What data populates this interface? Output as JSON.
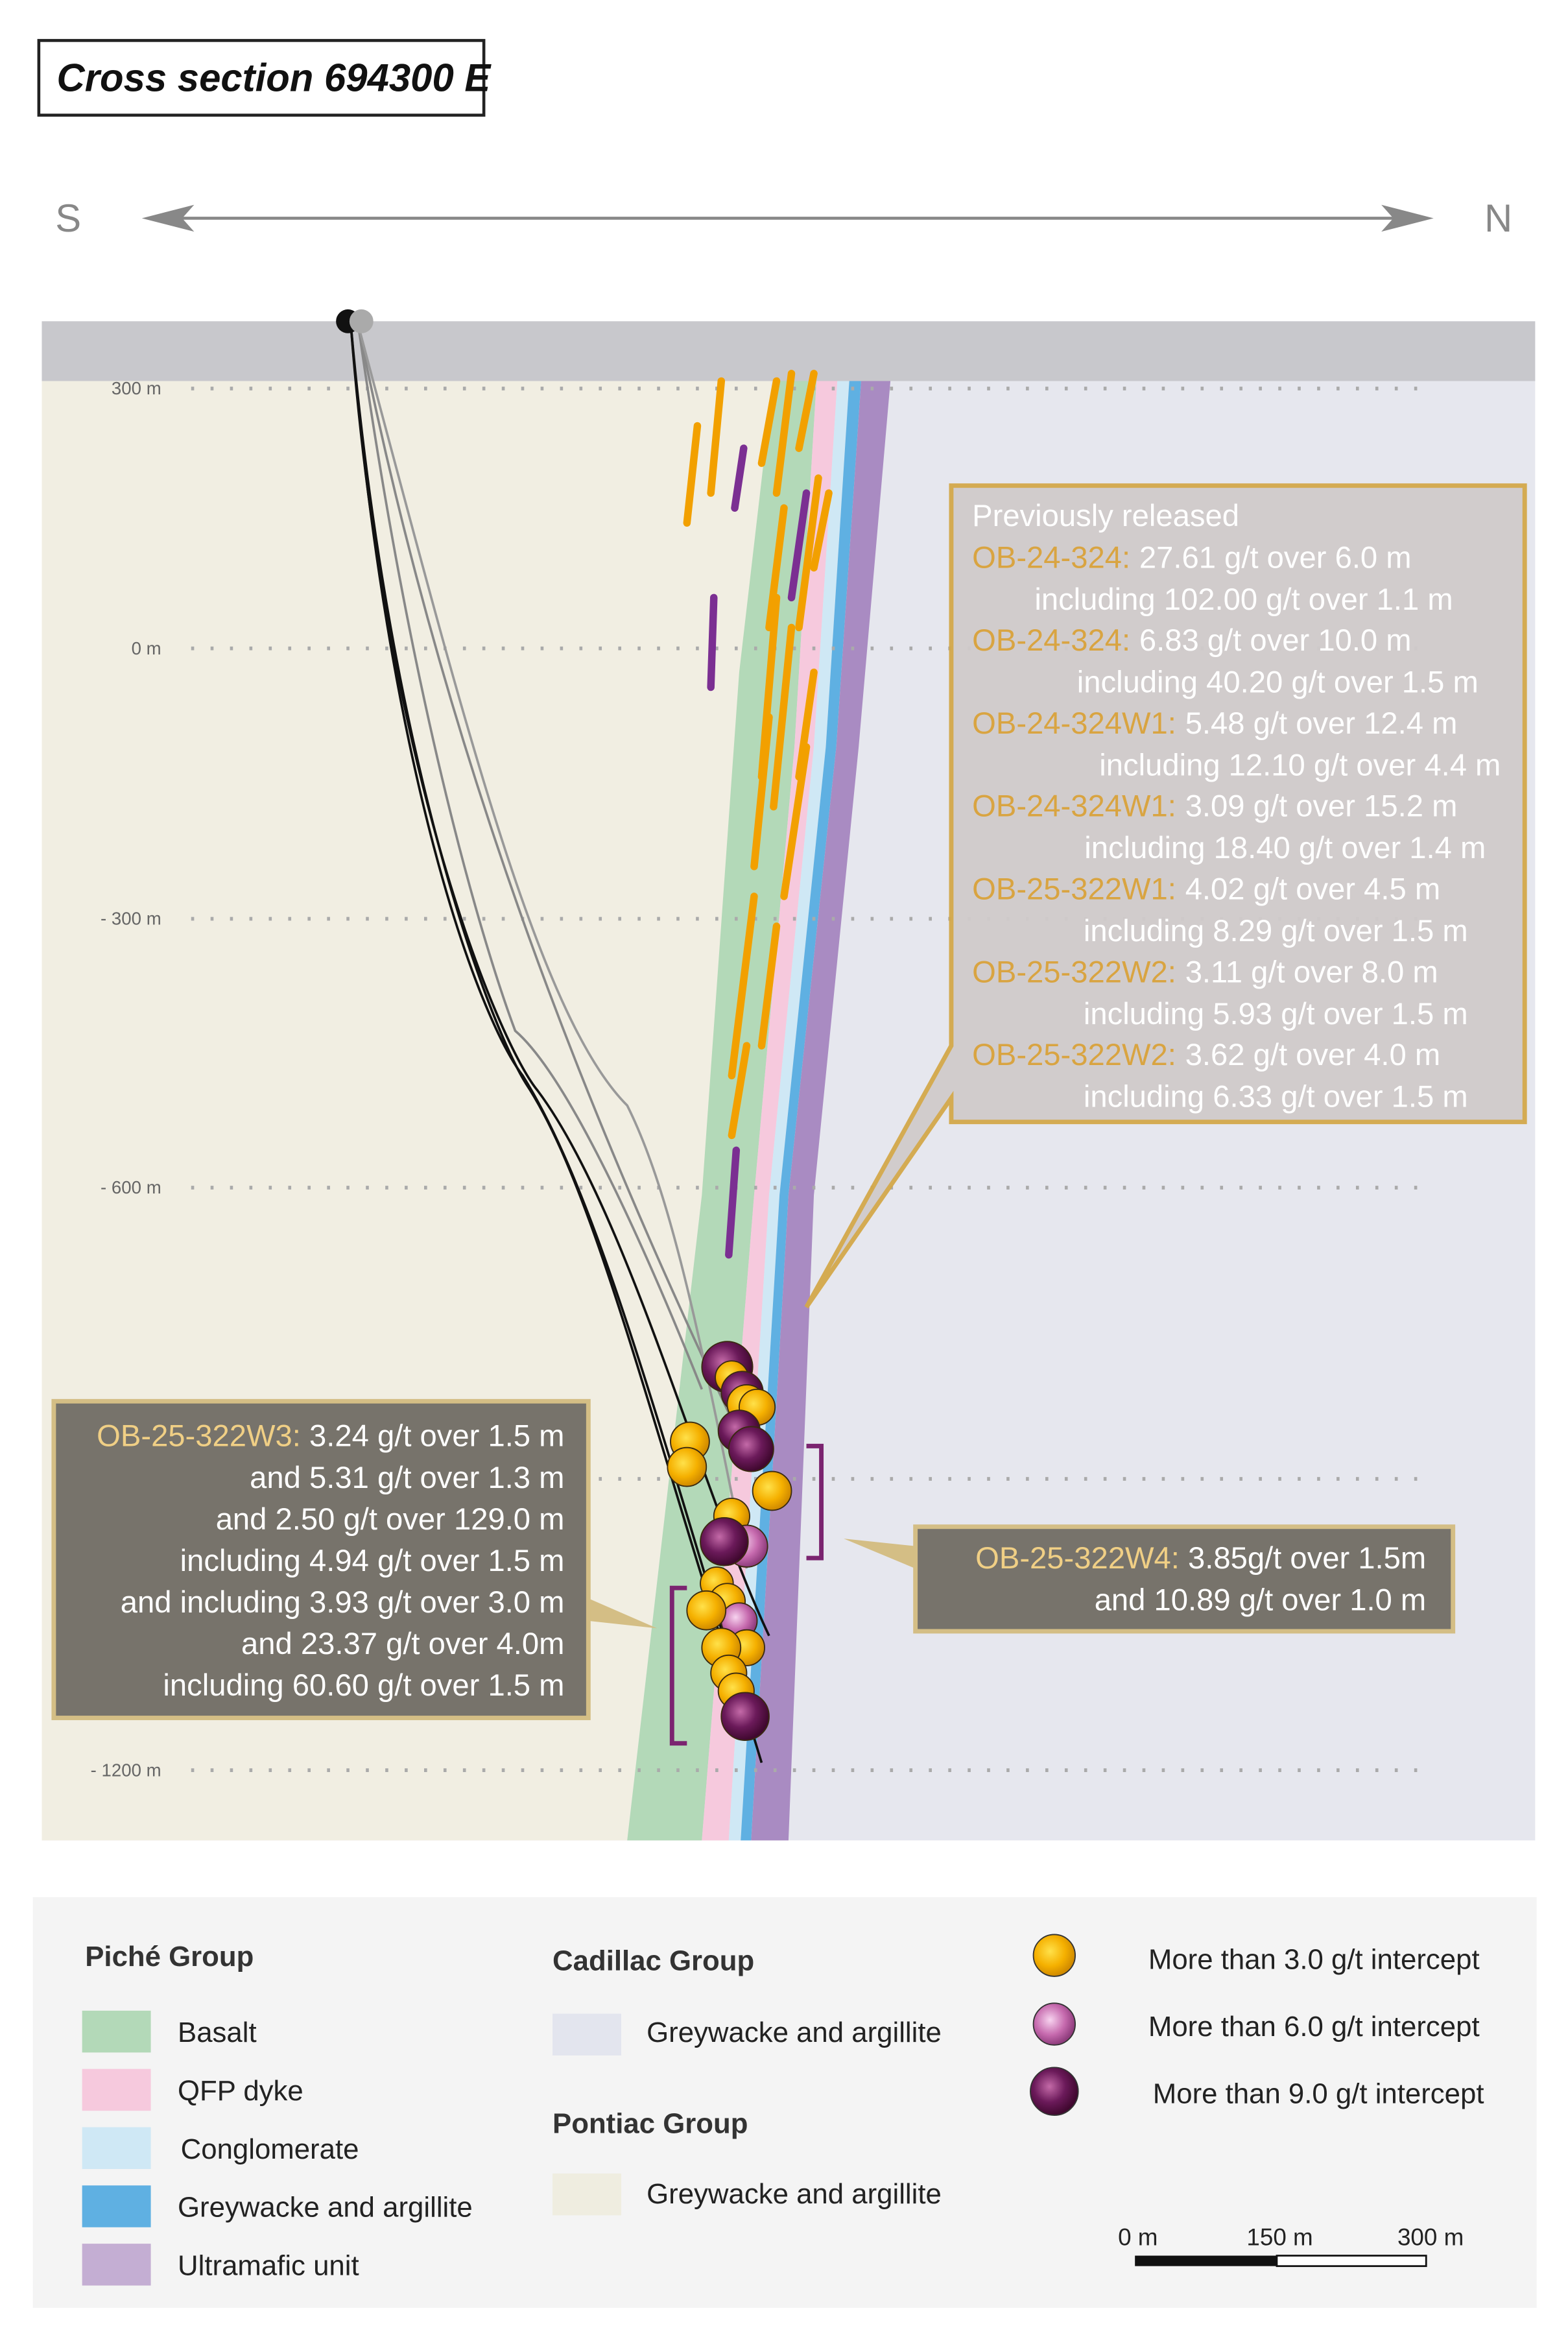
{
  "title": "Cross section 694300 E",
  "compass": {
    "left": "S",
    "right": "N"
  },
  "depth_labels": [
    "300 m",
    "0 m",
    "- 300 m",
    "- 600 m",
    "- 1200 m"
  ],
  "previously_released": {
    "heading": "Previously released",
    "rows": [
      {
        "hole": "OB-24-324:",
        "value": "27.61 g/t over 6.0 m",
        "including": "including 102.00 g/t over 1.1 m"
      },
      {
        "hole": "OB-24-324:",
        "value": "6.83 g/t over 10.0 m",
        "including": "including 40.20 g/t over 1.5 m"
      },
      {
        "hole": "OB-24-324W1:",
        "value": "5.48 g/t over 12.4 m",
        "including": "including 12.10 g/t over 4.4 m"
      },
      {
        "hole": "OB-24-324W1:",
        "value": "3.09 g/t over 15.2 m",
        "including": "including 18.40 g/t over 1.4 m"
      },
      {
        "hole": "OB-25-322W1:",
        "value": "4.02 g/t over 4.5 m",
        "including": "including 8.29 g/t over 1.5 m"
      },
      {
        "hole": "OB-25-322W2:",
        "value": "3.11 g/t over 8.0 m",
        "including": "including 5.93 g/t over 1.5 m"
      },
      {
        "hole": "OB-25-322W2:",
        "value": "3.62 g/t over 4.0 m",
        "including": "including 6.33 g/t over 1.5 m"
      }
    ]
  },
  "w3_callout": {
    "hole": "OB-25-322W3:",
    "first": "3.24 g/t over 1.5 m",
    "lines": [
      "and 5.31 g/t over 1.3 m",
      "and 2.50 g/t over 129.0 m",
      "including 4.94 g/t over 1.5 m",
      "and including 3.93 g/t over 3.0 m",
      "and 23.37 g/t over 4.0m",
      "including 60.60 g/t over 1.5 m"
    ]
  },
  "w4_callout": {
    "hole": "OB-25-322W4:",
    "first": "3.85g/t over 1.5m",
    "lines": [
      "and 10.89 g/t over 1.0 m"
    ]
  },
  "legend": {
    "piche": {
      "title": "Piché Group",
      "items": [
        {
          "label": "Basalt",
          "color": "#b3d9b8"
        },
        {
          "label": "QFP dyke",
          "color": "#f6c9dd"
        },
        {
          "label": "Conglomerate",
          "color": "#cfe8f5"
        },
        {
          "label": "Greywacke and argillite",
          "color": "#5fb0e2"
        },
        {
          "label": "Ultramafic unit",
          "color": "#c4aed3"
        }
      ]
    },
    "cadillac": {
      "title": "Cadillac Group",
      "items": [
        {
          "label": "Greywacke and argillite",
          "color": "#e3e5ee"
        }
      ]
    },
    "pontiac": {
      "title": "Pontiac Group",
      "items": [
        {
          "label": "Greywacke and argillite",
          "color": "#efede0"
        }
      ]
    },
    "intercepts": [
      {
        "label": "More than 3.0 g/t intercept",
        "color": "#f5b000"
      },
      {
        "label": "More than 6.0 g/t intercept",
        "color": "#c66aae"
      },
      {
        "label": "More than 9.0 g/t intercept",
        "color": "#6b1a5a"
      }
    ],
    "scale": [
      "0 m",
      "150 m",
      "300 m"
    ]
  }
}
